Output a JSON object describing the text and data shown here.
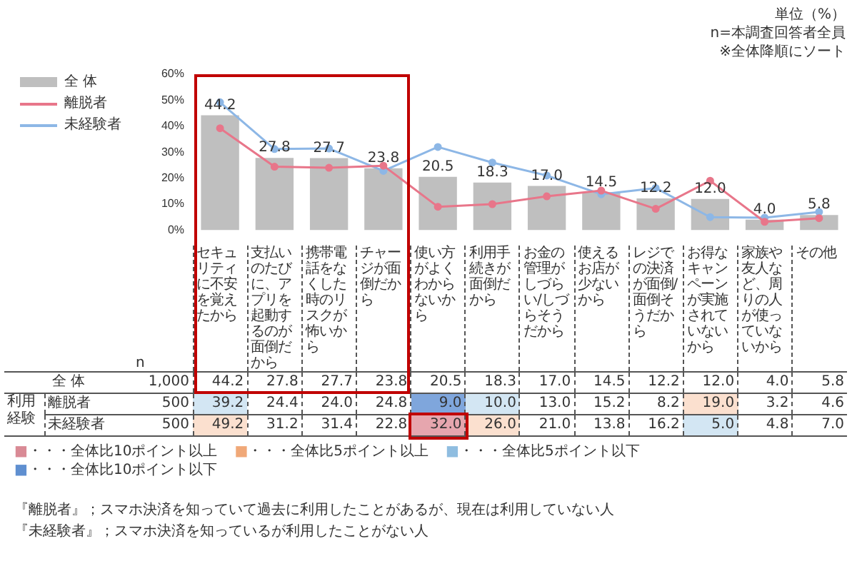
{
  "chart_data": {
    "type": "bar",
    "categories": [
      "セキュリティに不安を覚えたから",
      "支払いのたびに、アプリを起動するのが面倒だから",
      "携帯電話をなくした時のリスクが怖いから",
      "チャージが面倒だから",
      "使い方がよくわからないから",
      "利用手続きが面倒だから",
      "お金の管理がしづらい/しづらそうだから",
      "使えるお店が少ないから",
      "レジでの決済が面倒/面倒そうだから",
      "お得なキャンペーンが実施されていないから",
      "家族や友人など、周りの人が使っていないから",
      "その他"
    ],
    "series": [
      {
        "name": "全 体",
        "color": "#bfbfbf",
        "values": [
          44.2,
          27.8,
          27.7,
          23.8,
          20.5,
          18.3,
          17.0,
          14.5,
          12.2,
          12.0,
          4.0,
          5.8
        ],
        "value_labels": [
          "44.2",
          "27.8",
          "27.7",
          "23.8",
          "20.5",
          "18.3",
          "17.0",
          "14.5",
          "12.2",
          "12.0",
          "4.0",
          "5.8"
        ]
      },
      {
        "name": "離脱者",
        "type": "line",
        "color": "#e8768a",
        "values": [
          39.2,
          24.4,
          24.0,
          24.8,
          9.0,
          10.0,
          13.0,
          15.2,
          8.2,
          19.0,
          3.2,
          4.6
        ],
        "value_labels": [
          "39.2",
          "24.4",
          "24.0",
          "24.8",
          "9.0",
          "10.0",
          "13.0",
          "15.2",
          "8.2",
          "19.0",
          "3.2",
          "4.6"
        ]
      },
      {
        "name": "未経験者",
        "type": "line",
        "color": "#8db7e6",
        "values": [
          49.2,
          31.2,
          31.4,
          22.8,
          32.0,
          26.0,
          21.0,
          13.8,
          16.2,
          5.0,
          4.8,
          7.0
        ],
        "value_labels": [
          "49.2",
          "31.2",
          "31.4",
          "22.8",
          "32.0",
          "26.0",
          "21.0",
          "13.8",
          "16.2",
          "5.0",
          "4.8",
          "7.0"
        ]
      }
    ],
    "ylim": [
      0,
      60
    ],
    "yticks": [
      {
        "value": 0,
        "label": "0%"
      },
      {
        "value": 10,
        "label": "10%"
      },
      {
        "value": 20,
        "label": "20%"
      },
      {
        "value": 30,
        "label": "30%"
      },
      {
        "value": 40,
        "label": "40%"
      },
      {
        "value": 50,
        "label": "50%"
      },
      {
        "value": 60,
        "label": "60%"
      }
    ],
    "grid": false,
    "legend": "left",
    "marker": "circle",
    "line_style": "solid",
    "annotations": [
      "単位（%）",
      "n=本調査回答者全員",
      "※全体降順にソート",
      "n",
      "1,000",
      "500",
      "500",
      "利用経験",
      "■・・・全体比10ポイント以上",
      "■・・・全体比5ポイント以上",
      "■・・・全体比5ポイント以下",
      "■・・・全体比10ポイント以下",
      "『離脱者』；スマホ決済を知っていて過去に利用したことがあるが、現在は利用していない人",
      "『未経験者』；スマホ決済を知っているが利用したことがない人"
    ]
  }
}
